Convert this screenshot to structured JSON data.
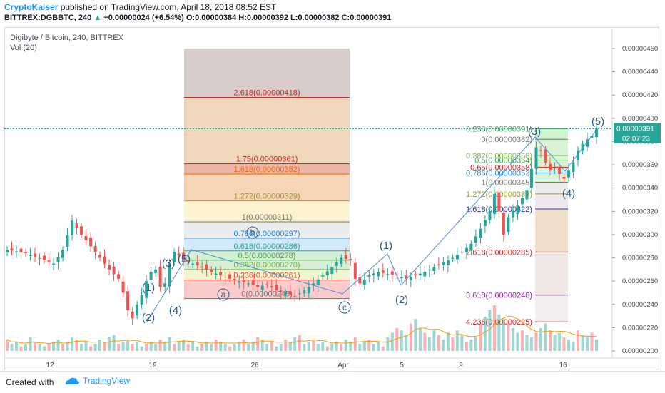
{
  "header": {
    "author": "CryptoKaiser",
    "published": " published on TradingView.com, April 18, 2018 08:52 EST",
    "symbol": "BITTREX:DGBBTC, 240",
    "change_arrow": "▲",
    "change": "+0.00000024 (+6.54%)",
    "ohlc": "O:0.00000384 H:0.00000392 L:0.00000382 C:0.00000391"
  },
  "legend": {
    "title": "Digibyte / Bitcoin, 240, BITTREX",
    "vol": "Vol (20)"
  },
  "footer": {
    "created": "Created with",
    "brand": "TradingView"
  },
  "colors": {
    "up": "#26a69a",
    "down": "#ef5350",
    "accent": "#2196f3",
    "wave": "#2a5b8a"
  },
  "chart_data": {
    "type": "candlestick",
    "y_ticks": [
      "0.00000460",
      "0.00000440",
      "0.00000420",
      "0.00000400",
      "0.00000380",
      "0.00000360",
      "0.00000340",
      "0.00000320",
      "0.00000300",
      "0.00000280",
      "0.00000260",
      "0.00000240",
      "0.00000220",
      "0.00000200"
    ],
    "x_ticks": [
      "12",
      "19",
      "26",
      "Apr",
      "5",
      "9",
      "16"
    ],
    "last_price": "0.00000391",
    "countdown": "02:07:23",
    "price_path": [
      [
        0,
        287
      ],
      [
        4,
        284
      ],
      [
        6,
        281
      ],
      [
        8,
        278
      ],
      [
        10,
        275
      ],
      [
        12,
        287
      ],
      [
        14,
        312
      ],
      [
        16,
        300
      ],
      [
        18,
        290
      ],
      [
        20,
        280
      ],
      [
        22,
        270
      ],
      [
        24,
        262
      ],
      [
        25,
        250
      ],
      [
        26,
        235
      ],
      [
        27,
        228
      ],
      [
        28,
        240
      ],
      [
        29,
        248
      ],
      [
        30,
        260
      ],
      [
        31,
        268
      ],
      [
        32,
        270
      ],
      [
        33,
        255
      ],
      [
        34,
        258
      ],
      [
        35,
        275
      ],
      [
        36,
        285
      ],
      [
        37,
        282
      ],
      [
        38,
        278
      ],
      [
        40,
        275
      ],
      [
        42,
        272
      ],
      [
        44,
        268
      ],
      [
        46,
        265
      ],
      [
        48,
        262
      ],
      [
        50,
        260
      ],
      [
        52,
        258
      ],
      [
        54,
        255
      ],
      [
        56,
        257
      ],
      [
        58,
        252
      ],
      [
        60,
        250
      ],
      [
        62,
        247
      ],
      [
        64,
        252
      ],
      [
        66,
        258
      ],
      [
        68,
        265
      ],
      [
        70,
        272
      ],
      [
        72,
        280
      ],
      [
        74,
        278
      ],
      [
        75,
        262
      ],
      [
        76,
        258
      ],
      [
        78,
        265
      ],
      [
        80,
        268
      ],
      [
        82,
        266
      ],
      [
        84,
        265
      ],
      [
        86,
        262
      ],
      [
        88,
        265
      ],
      [
        90,
        268
      ],
      [
        92,
        272
      ],
      [
        94,
        276
      ],
      [
        96,
        280
      ],
      [
        98,
        285
      ],
      [
        100,
        292
      ],
      [
        102,
        305
      ],
      [
        104,
        320
      ],
      [
        105,
        335
      ],
      [
        106,
        320
      ],
      [
        107,
        300
      ],
      [
        108,
        315
      ],
      [
        110,
        325
      ],
      [
        112,
        338
      ],
      [
        114,
        375
      ],
      [
        115,
        372
      ],
      [
        116,
        362
      ],
      [
        117,
        355
      ],
      [
        118,
        357
      ],
      [
        119,
        352
      ],
      [
        120,
        348
      ],
      [
        121,
        355
      ],
      [
        122,
        362
      ],
      [
        123,
        372
      ],
      [
        124,
        378
      ],
      [
        125,
        382
      ],
      [
        126,
        385
      ],
      [
        127,
        391
      ]
    ],
    "volumes": [
      5,
      3,
      4,
      2,
      3,
      6,
      4,
      3,
      2,
      3,
      4,
      5,
      3,
      4,
      6,
      5,
      3,
      4,
      2,
      3,
      5,
      4,
      6,
      7,
      3,
      4,
      5,
      3,
      4,
      2,
      3,
      4,
      3,
      5,
      4,
      6,
      3,
      4,
      5,
      3,
      4,
      2,
      3,
      4,
      3,
      5,
      4,
      3,
      2,
      3,
      4,
      5,
      3,
      4,
      6,
      5,
      3,
      4,
      2,
      3,
      5,
      4,
      6,
      7,
      3,
      4,
      5,
      3,
      4,
      2,
      3,
      4,
      3,
      5,
      4,
      6,
      3,
      4,
      5,
      3,
      4,
      2,
      6,
      8,
      10,
      9,
      7,
      12,
      14,
      10,
      8,
      6,
      9,
      7,
      5,
      8,
      6,
      9,
      7,
      4,
      5,
      6,
      12,
      15,
      18,
      20,
      16,
      14,
      12,
      10,
      8,
      9,
      7,
      6,
      8,
      10,
      12,
      9,
      7,
      8,
      6,
      5,
      4,
      9,
      7,
      6,
      8,
      5
    ],
    "fib_left": [
      {
        "label": "2.618(0.00000418)",
        "price": 418,
        "color": "#c62828"
      },
      {
        "label": "1.75(0.00000361)",
        "price": 361,
        "color": "#c62828"
      },
      {
        "label": "1.618(0.00000352)",
        "price": 352,
        "color": "#ef6c00"
      },
      {
        "label": "1.272(0.00000329)",
        "price": 329,
        "color": "#9e9d24"
      },
      {
        "label": "1(0.00000311)",
        "price": 311,
        "color": "#757575"
      },
      {
        "label": "0.786(0.00000297)",
        "price": 297,
        "color": "#1e88e5"
      },
      {
        "label": "0.618(0.00000286)",
        "price": 286,
        "color": "#26a69a"
      },
      {
        "label": "0.5(0.00000278)",
        "price": 278,
        "color": "#43a047"
      },
      {
        "label": "0.382(0.00000270)",
        "price": 270,
        "color": "#7cb342"
      },
      {
        "label": "0.236(0.00000261)",
        "price": 261,
        "color": "#e53935"
      },
      {
        "label": "0(0.00000245)",
        "price": 245,
        "color": "#757575"
      }
    ],
    "fib_right": [
      {
        "label": "0.236(0.00000391)",
        "price": 391,
        "color": "#43a047"
      },
      {
        "label": "0(0.00000382)",
        "price": 382,
        "color": "#757575"
      },
      {
        "label": "0.382(0.00000368)",
        "price": 368,
        "color": "#7cb342"
      },
      {
        "label": "0.5(0.00000364)",
        "price": 364,
        "color": "#43a047"
      },
      {
        "label": "0.65(0.00000358)",
        "price": 358,
        "color": "#c62828"
      },
      {
        "label": "0.786(0.00000353)",
        "price": 353,
        "color": "#1e88e5"
      },
      {
        "label": "1(0.00000345)",
        "price": 345,
        "color": "#757575"
      },
      {
        "label": "1.272(0.00000335)",
        "price": 335,
        "color": "#9e9d24"
      },
      {
        "label": "1.618(0.00000322)",
        "price": 322,
        "color": "#283593"
      },
      {
        "label": "2.618(0.00000285)",
        "price": 285,
        "color": "#c62828"
      },
      {
        "label": "3.618(0.00000248)",
        "price": 248,
        "color": "#8e24aa"
      },
      {
        "label": "4.236(0.00000225)",
        "price": 225,
        "color": "#c62828"
      }
    ],
    "wave_labels": [
      "(1)",
      "(2)",
      "(3)",
      "(4)",
      "(5)",
      "a",
      "b",
      "c",
      "(1)",
      "(2)",
      "(3)",
      "(4)",
      "(5)"
    ]
  }
}
